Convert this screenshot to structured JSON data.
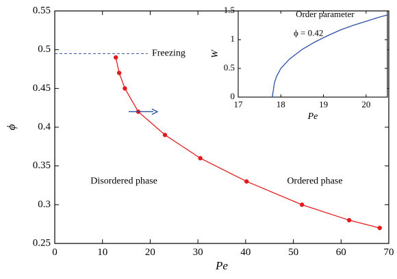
{
  "chart_data": [
    {
      "type": "line",
      "title": "",
      "xlabel": "Pe",
      "ylabel": "ϕ",
      "xlim": [
        0,
        70
      ],
      "ylim": [
        0.25,
        0.55
      ],
      "xticks": [
        0,
        10,
        20,
        30,
        40,
        50,
        60,
        70
      ],
      "yticks": [
        0.25,
        0.3,
        0.35,
        0.4,
        0.45,
        0.5,
        0.55
      ],
      "xtick_labels": [
        "0",
        "10",
        "20",
        "30",
        "40",
        "50",
        "60",
        "70"
      ],
      "ytick_labels": [
        "0.25",
        "0.3",
        "0.35",
        "0.4",
        "0.45",
        "0.5",
        "0.55"
      ],
      "series": [
        {
          "color": "#e31a1c",
          "markers": true,
          "x": [
            12.8,
            13.5,
            14.7,
            17.5,
            23.1,
            30.5,
            40.2,
            51.8,
            61.7,
            68.1
          ],
          "y": [
            0.49,
            0.47,
            0.45,
            0.42,
            0.39,
            0.36,
            0.33,
            0.3,
            0.28,
            0.27
          ]
        }
      ],
      "reference_line": {
        "label": "Freezing",
        "y": 0.495,
        "x_range": [
          0,
          19.5
        ],
        "color": "#2b4fa3",
        "style": "dashed"
      },
      "arrow": {
        "x_from": 15.5,
        "x_to": 21.5,
        "y": 0.42,
        "color": "#2b4fa3"
      },
      "annotations": [
        {
          "text": "Disordered phase",
          "x": 14.5,
          "y": 0.33
        },
        {
          "text": "Ordered phase",
          "x": 54.5,
          "y": 0.33
        }
      ],
      "grid": false
    },
    {
      "type": "line",
      "title": "",
      "xlabel": "Pe",
      "ylabel": "W",
      "xlim": [
        17,
        20.5
      ],
      "ylim": [
        0,
        1.5
      ],
      "xticks": [
        17,
        18,
        19,
        20
      ],
      "yticks": [
        0,
        0.5,
        1,
        1.5
      ],
      "xtick_labels": [
        "17",
        "18",
        "19",
        "20"
      ],
      "ytick_labels": [
        "0",
        "0.5",
        "1",
        "1.5"
      ],
      "series": [
        {
          "color": "#2b4fa3",
          "markers": false,
          "x": [
            17.8,
            17.85,
            17.9,
            18.0,
            18.2,
            18.5,
            18.8,
            19.1,
            19.4,
            19.7,
            20.0,
            20.3,
            20.5
          ],
          "y": [
            0.0,
            0.25,
            0.36,
            0.5,
            0.66,
            0.83,
            0.96,
            1.07,
            1.17,
            1.25,
            1.32,
            1.39,
            1.43
          ]
        }
      ],
      "annotations": [
        {
          "text": "Order parameter",
          "x": 18.35,
          "y": 1.43
        },
        {
          "text": "ϕ = 0.42",
          "x": 18.3,
          "y": 1.1
        }
      ],
      "grid": false
    }
  ]
}
